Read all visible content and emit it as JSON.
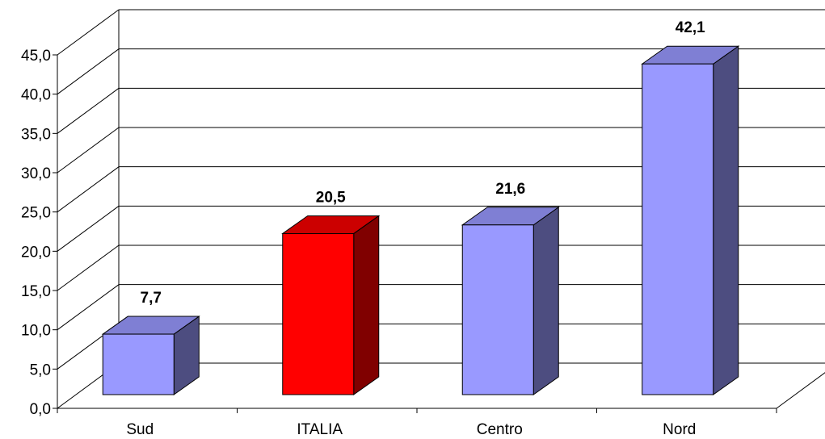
{
  "chart_data": {
    "type": "bar",
    "categories": [
      "Sud",
      "ITALIA",
      "Centro",
      "Nord"
    ],
    "values": [
      7.7,
      20.5,
      21.6,
      42.1
    ],
    "data_labels": [
      "7,7",
      "20,5",
      "21,6",
      "42,1"
    ],
    "y_ticks": [
      "0,0",
      "5,0",
      "10,0",
      "15,0",
      "20,0",
      "25,0",
      "30,0",
      "35,0",
      "40,0",
      "45,0"
    ],
    "ylim": [
      0,
      45
    ],
    "grid": true,
    "style": "3d",
    "colors": {
      "default_front": "#9999ff",
      "default_top": "#7f7fd4",
      "default_side": "#4d4d80",
      "highlight_front": "#ff0000",
      "highlight_top": "#cc0000",
      "highlight_side": "#800000",
      "highlight_category": "ITALIA"
    }
  }
}
